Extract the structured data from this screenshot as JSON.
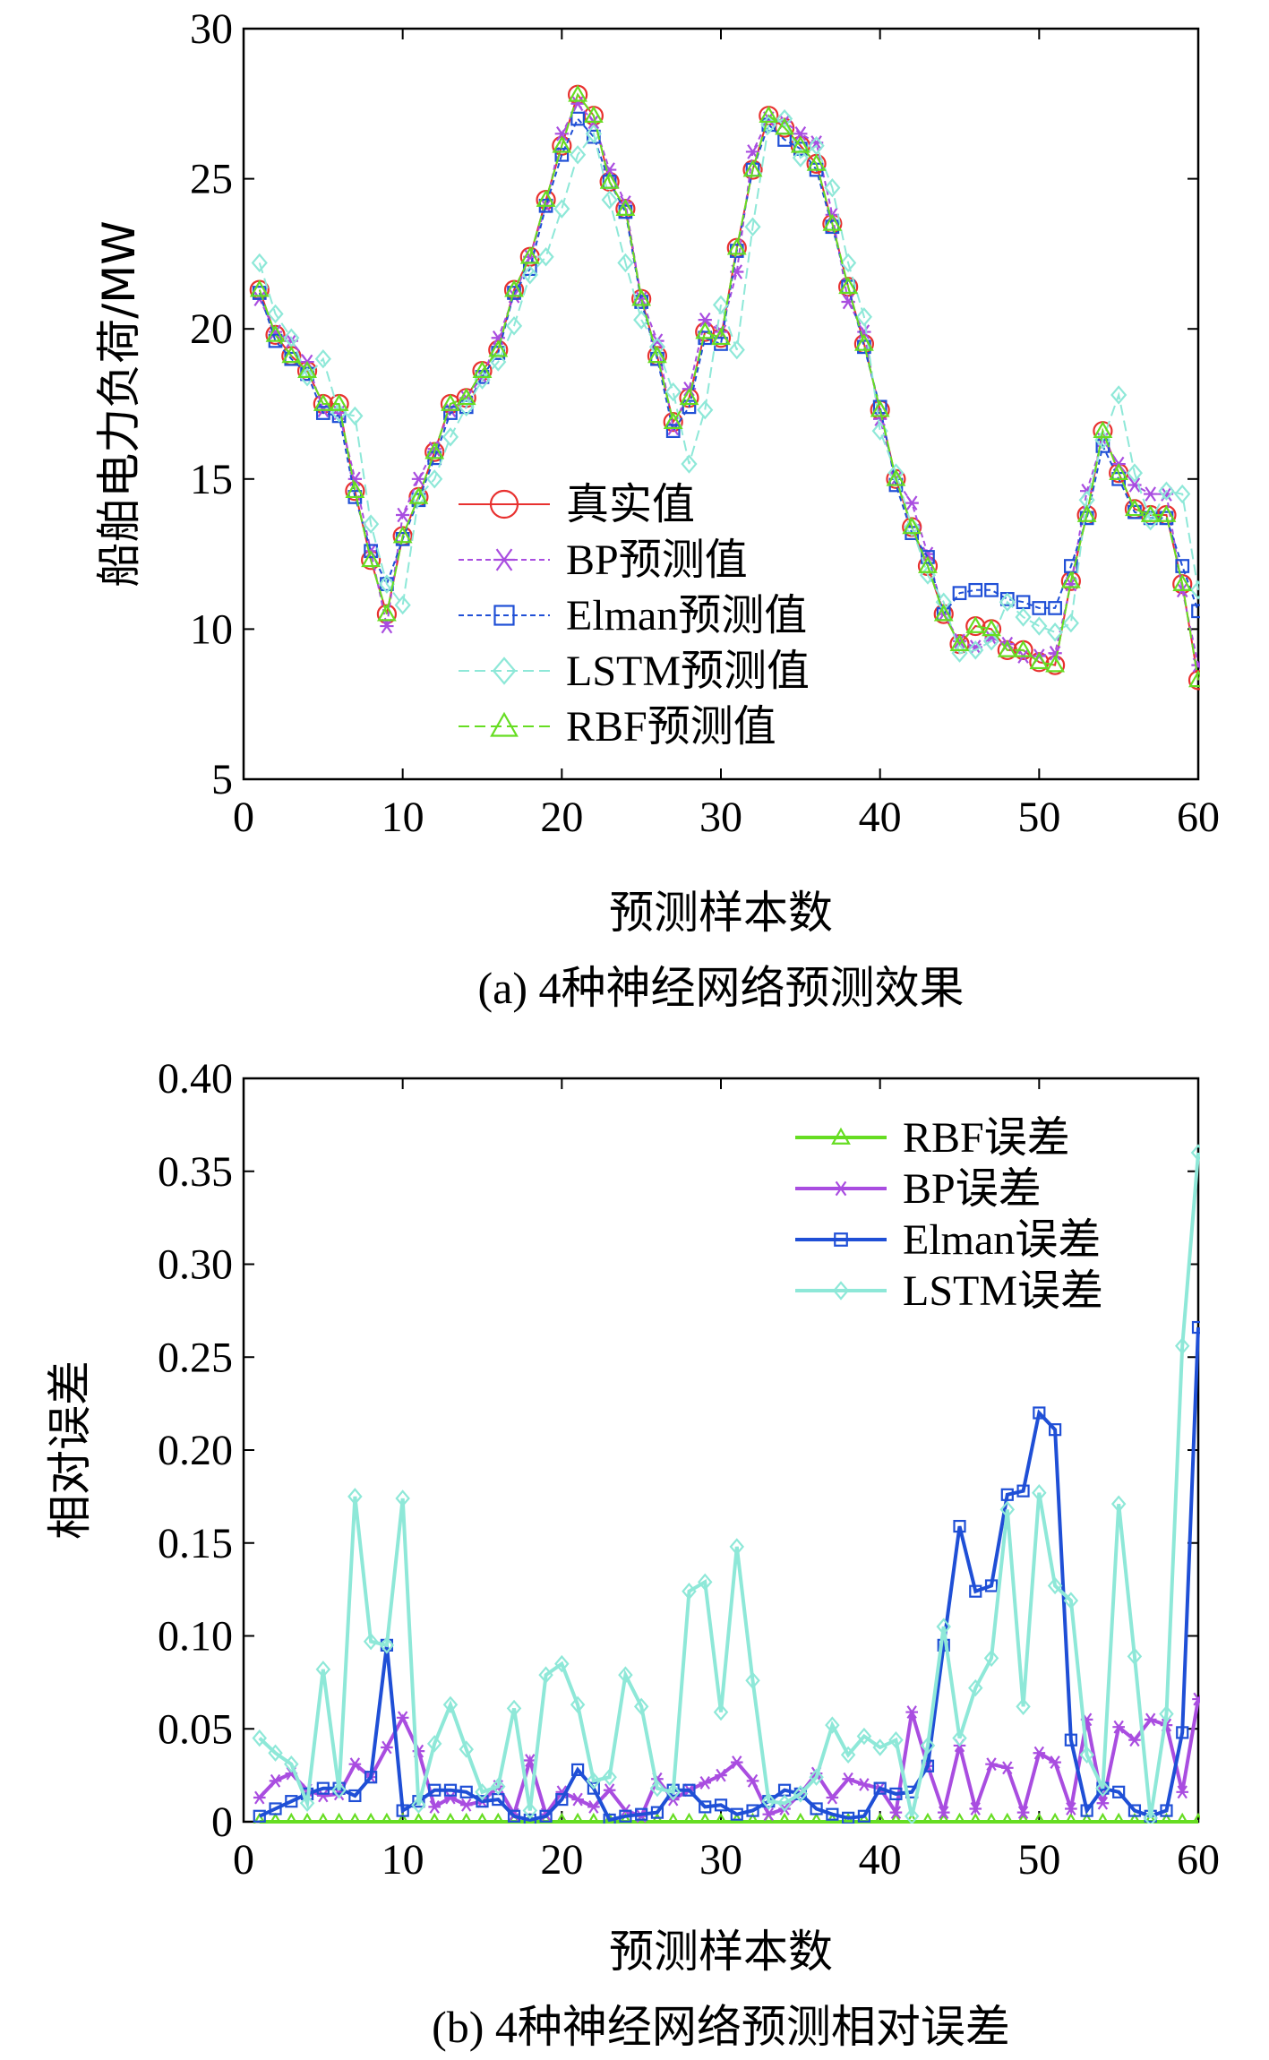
{
  "chart_data": [
    {
      "type": "line",
      "caption": "(a) 4种神经网络预测效果",
      "xlabel": "预测样本数",
      "ylabel": "船舶电力负荷/MW",
      "xlim": [
        0,
        60
      ],
      "ylim": [
        5,
        30
      ],
      "xticks": [
        "0",
        "10",
        "20",
        "30",
        "40",
        "50",
        "60"
      ],
      "yticks": [
        "5",
        "10",
        "15",
        "20",
        "25",
        "30"
      ],
      "legend_position": "center-left",
      "x": [
        1,
        2,
        3,
        4,
        5,
        6,
        7,
        8,
        9,
        10,
        11,
        12,
        13,
        14,
        15,
        16,
        17,
        18,
        19,
        20,
        21,
        22,
        23,
        24,
        25,
        26,
        27,
        28,
        29,
        30,
        31,
        32,
        33,
        34,
        35,
        36,
        37,
        38,
        39,
        40,
        41,
        42,
        43,
        44,
        45,
        46,
        47,
        48,
        49,
        50,
        51,
        52,
        53,
        54,
        55,
        56,
        57,
        58,
        59,
        60
      ],
      "series": [
        {
          "name": "真实值",
          "color": "#e8312f",
          "marker": "circle",
          "dash": "solid",
          "values": [
            21.3,
            19.8,
            19.1,
            18.6,
            17.5,
            17.5,
            14.6,
            12.3,
            10.5,
            13.1,
            14.4,
            15.9,
            17.5,
            17.7,
            18.6,
            19.3,
            21.3,
            22.4,
            24.3,
            26.1,
            27.8,
            27.1,
            24.9,
            24.0,
            21.0,
            19.1,
            16.9,
            17.7,
            19.9,
            19.7,
            22.7,
            25.3,
            27.1,
            26.7,
            26.1,
            25.5,
            23.5,
            21.4,
            19.5,
            17.3,
            15.0,
            13.4,
            12.1,
            10.5,
            9.5,
            10.1,
            10.0,
            9.3,
            9.3,
            8.9,
            8.8,
            11.6,
            13.8,
            16.6,
            15.2,
            14.0,
            13.8,
            13.8,
            11.5,
            8.3
          ]
        },
        {
          "name": "BP预测值",
          "color": "#a94de0",
          "marker": "asterisk",
          "dash": "6,4",
          "values": [
            21.0,
            19.9,
            19.6,
            18.9,
            17.3,
            17.2,
            15.0,
            12.6,
            10.1,
            13.8,
            15.0,
            16.0,
            17.3,
            17.7,
            18.4,
            19.7,
            21.1,
            22.4,
            24.1,
            26.5,
            27.5,
            26.9,
            25.3,
            24.2,
            21.0,
            19.6,
            16.7,
            18.0,
            20.3,
            19.9,
            21.9,
            25.9,
            27.0,
            26.9,
            26.5,
            26.2,
            23.8,
            20.9,
            19.9,
            17.0,
            15.0,
            14.2,
            12.5,
            10.5,
            9.6,
            9.4,
            9.7,
            9.5,
            9.1,
            9.1,
            9.2,
            11.5,
            14.6,
            16.3,
            15.5,
            14.8,
            14.5,
            14.5,
            11.3,
            8.8
          ]
        },
        {
          "name": "Elman预测值",
          "color": "#1f4fd6",
          "marker": "square",
          "dash": "6,4",
          "values": [
            21.2,
            19.6,
            19.0,
            18.5,
            17.2,
            17.1,
            14.4,
            12.6,
            11.5,
            13.0,
            14.3,
            15.7,
            17.2,
            17.4,
            18.4,
            19.2,
            21.2,
            22.0,
            24.1,
            25.8,
            27.0,
            26.4,
            24.9,
            23.9,
            20.9,
            19.0,
            16.6,
            17.4,
            19.7,
            19.5,
            22.6,
            25.3,
            26.8,
            26.3,
            26.0,
            25.3,
            23.4,
            21.4,
            19.4,
            17.4,
            14.8,
            13.2,
            12.4,
            10.5,
            11.2,
            11.3,
            11.3,
            11.0,
            10.9,
            10.7,
            10.7,
            12.1,
            13.7,
            16.1,
            15.0,
            13.9,
            13.7,
            13.7,
            12.1,
            10.6
          ]
        },
        {
          "name": "LSTM预测值",
          "color": "#8ee8d8",
          "marker": "diamond",
          "dash": "12,6",
          "values": [
            22.2,
            20.5,
            19.7,
            18.4,
            19.0,
            17.2,
            17.1,
            13.5,
            11.5,
            10.8,
            14.4,
            15.0,
            16.4,
            17.4,
            18.3,
            18.9,
            20.1,
            21.8,
            22.4,
            24.0,
            25.8,
            26.5,
            24.3,
            22.2,
            20.3,
            19.4,
            17.9,
            15.5,
            17.3,
            20.8,
            19.3,
            23.4,
            26.8,
            27.0,
            25.7,
            26.1,
            24.7,
            22.2,
            20.4,
            16.6,
            15.2,
            13.4,
            11.8,
            10.9,
            9.2,
            9.3,
            9.6,
            10.9,
            10.4,
            10.1,
            9.9,
            10.2,
            14.3,
            16.3,
            17.8,
            15.2,
            13.6,
            14.6,
            14.5,
            11.3
          ]
        },
        {
          "name": "RBF预测值",
          "color": "#66dd22",
          "marker": "triangle",
          "dash": "12,6",
          "values": [
            21.3,
            19.8,
            19.1,
            18.6,
            17.5,
            17.5,
            14.6,
            12.3,
            10.5,
            13.1,
            14.4,
            15.9,
            17.5,
            17.7,
            18.6,
            19.3,
            21.3,
            22.4,
            24.3,
            26.1,
            27.8,
            27.1,
            24.9,
            24.0,
            21.0,
            19.1,
            16.9,
            17.7,
            19.9,
            19.7,
            22.7,
            25.3,
            27.1,
            26.7,
            26.1,
            25.5,
            23.5,
            21.4,
            19.5,
            17.3,
            15.0,
            13.4,
            12.1,
            10.5,
            9.5,
            10.1,
            10.0,
            9.3,
            9.3,
            8.9,
            8.8,
            11.6,
            13.8,
            16.6,
            15.2,
            14.0,
            13.8,
            13.8,
            11.5,
            8.3
          ]
        }
      ]
    },
    {
      "type": "line",
      "caption": "(b) 4种神经网络预测相对误差",
      "xlabel": "预测样本数",
      "ylabel": "相对误差",
      "xlim": [
        0,
        60
      ],
      "ylim": [
        0,
        0.4
      ],
      "xticks": [
        "0",
        "10",
        "20",
        "30",
        "40",
        "50",
        "60"
      ],
      "yticks": [
        "0",
        "0.05",
        "0.10",
        "0.15",
        "0.20",
        "0.25",
        "0.30",
        "0.35",
        "0.40"
      ],
      "legend_position": "top-right",
      "x": [
        1,
        2,
        3,
        4,
        5,
        6,
        7,
        8,
        9,
        10,
        11,
        12,
        13,
        14,
        15,
        16,
        17,
        18,
        19,
        20,
        21,
        22,
        23,
        24,
        25,
        26,
        27,
        28,
        29,
        30,
        31,
        32,
        33,
        34,
        35,
        36,
        37,
        38,
        39,
        40,
        41,
        42,
        43,
        44,
        45,
        46,
        47,
        48,
        49,
        50,
        51,
        52,
        53,
        54,
        55,
        56,
        57,
        58,
        59,
        60
      ],
      "series": [
        {
          "name": "RBF误差",
          "color": "#66dd22",
          "marker": "triangle",
          "values": [
            0,
            0,
            0,
            0,
            0,
            0,
            0,
            0,
            0,
            0,
            0,
            0,
            0,
            0,
            0,
            0,
            0,
            0,
            0,
            0,
            0,
            0,
            0,
            0,
            0,
            0,
            0,
            0,
            0,
            0,
            0,
            0,
            0,
            0,
            0,
            0,
            0,
            0,
            0,
            0,
            0,
            0,
            0,
            0,
            0,
            0,
            0,
            0,
            0,
            0,
            0,
            0,
            0,
            0,
            0,
            0,
            0,
            0,
            0,
            0
          ]
        },
        {
          "name": "BP误差",
          "color": "#a94de0",
          "marker": "asterisk",
          "values": [
            0.013,
            0.022,
            0.026,
            0.017,
            0.014,
            0.015,
            0.031,
            0.024,
            0.04,
            0.056,
            0.038,
            0.008,
            0.013,
            0.009,
            0.011,
            0.019,
            0.004,
            0.033,
            0.004,
            0.016,
            0.012,
            0.008,
            0.017,
            0.006,
            0.003,
            0.023,
            0.012,
            0.017,
            0.021,
            0.025,
            0.032,
            0.022,
            0.004,
            0.007,
            0.015,
            0.026,
            0.013,
            0.023,
            0.02,
            0.018,
            0.005,
            0.059,
            0.03,
            0.005,
            0.041,
            0.007,
            0.031,
            0.029,
            0.005,
            0.037,
            0.032,
            0.007,
            0.055,
            0.01,
            0.051,
            0.044,
            0.055,
            0.052,
            0.016,
            0.066
          ]
        },
        {
          "name": "Elman误差",
          "color": "#1f4fd6",
          "marker": "square",
          "values": [
            0.003,
            0.007,
            0.011,
            0.015,
            0.018,
            0.018,
            0.014,
            0.024,
            0.095,
            0.006,
            0.011,
            0.017,
            0.017,
            0.016,
            0.011,
            0.012,
            0.003,
            0.001,
            0.003,
            0.012,
            0.028,
            0.018,
            0.001,
            0.003,
            0.004,
            0.005,
            0.017,
            0.017,
            0.008,
            0.009,
            0.004,
            0.006,
            0.011,
            0.017,
            0.015,
            0.007,
            0.004,
            0.002,
            0.003,
            0.018,
            0.015,
            0.016,
            0.03,
            0.095,
            0.159,
            0.124,
            0.127,
            0.176,
            0.178,
            0.22,
            0.211,
            0.044,
            0.006,
            0.018,
            0.016,
            0.006,
            0.003,
            0.006,
            0.048,
            0.266
          ]
        },
        {
          "name": "LSTM误差",
          "color": "#8ee8d8",
          "marker": "diamond",
          "values": [
            0.045,
            0.037,
            0.031,
            0.01,
            0.082,
            0.017,
            0.175,
            0.097,
            0.095,
            0.174,
            0.009,
            0.042,
            0.063,
            0.039,
            0.016,
            0.019,
            0.061,
            0.006,
            0.079,
            0.085,
            0.063,
            0.022,
            0.024,
            0.079,
            0.062,
            0.018,
            0.016,
            0.124,
            0.129,
            0.059,
            0.148,
            0.076,
            0.011,
            0.01,
            0.015,
            0.024,
            0.052,
            0.036,
            0.046,
            0.04,
            0.044,
            0.003,
            0.041,
            0.105,
            0.045,
            0.072,
            0.088,
            0.168,
            0.062,
            0.177,
            0.127,
            0.119,
            0.036,
            0.018,
            0.171,
            0.089,
            0.002,
            0.058,
            0.256,
            0.36
          ]
        }
      ]
    }
  ]
}
